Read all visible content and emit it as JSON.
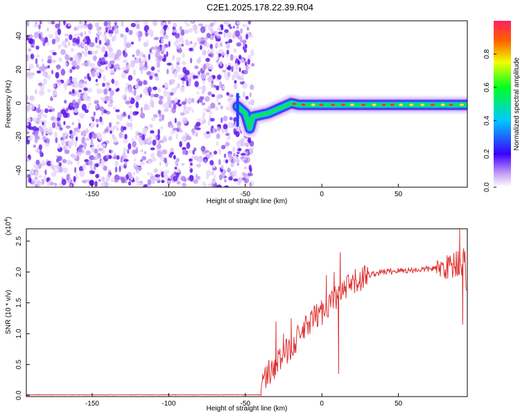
{
  "title": "C2E1.2025.178.22.39.R04",
  "chart_data": [
    {
      "type": "heatmap",
      "xlabel": "Height of straight line (km)",
      "ylabel": "Frequency (Hz)",
      "xlim": [
        -193,
        95
      ],
      "ylim": [
        -50,
        49
      ],
      "x_ticks": [
        -150,
        -100,
        -50,
        0,
        50
      ],
      "y_ticks": [
        -40,
        -20,
        0,
        20,
        40
      ],
      "noise_region_x": [
        -193,
        -45
      ],
      "signal_track": {
        "x": [
          -55,
          -50,
          -47,
          -45,
          -40,
          -35,
          -30,
          -25,
          -20,
          -15,
          -10,
          0,
          10,
          20,
          30,
          40,
          50,
          60,
          70,
          80,
          90,
          95
        ],
        "y": [
          -2,
          -6,
          -15,
          -8,
          -7,
          -6,
          -4,
          -2,
          0,
          -1,
          -1,
          -1,
          -1,
          -1,
          -1,
          -1,
          -1,
          -1,
          -1,
          -1,
          -1,
          -1
        ]
      },
      "colorbar": {
        "label": "Normalized spectral amplitude",
        "range": [
          0,
          1
        ],
        "ticks": [
          0.0,
          0.2,
          0.4,
          0.6,
          0.8
        ]
      }
    },
    {
      "type": "line",
      "xlabel": "Height of straight line (km)",
      "ylabel": "SNR (10 * v/v)",
      "y_multiplier_label": "(x10",
      "y_multiplier_exp": "4",
      "xlim": [
        -193,
        95
      ],
      "ylim": [
        -0.02,
        2.7
      ],
      "x_ticks": [
        -150,
        -100,
        -50,
        0,
        50
      ],
      "y_ticks": [
        "0.0",
        "0.5",
        "1.0",
        "1.5",
        "2.0",
        "2.5"
      ],
      "line_color": "#e03030",
      "series_anchor": {
        "x": [
          -193,
          -40,
          -38,
          -35,
          -30,
          -25,
          -20,
          -15,
          -10,
          -5,
          0,
          5,
          10,
          15,
          20,
          25,
          30,
          40,
          50,
          60,
          70,
          80,
          85,
          90,
          95
        ],
        "y": [
          0.01,
          0.01,
          0.25,
          0.35,
          0.5,
          0.65,
          0.8,
          0.95,
          1.1,
          1.25,
          1.35,
          1.5,
          1.6,
          1.7,
          1.8,
          1.88,
          1.95,
          2.0,
          2.02,
          2.03,
          2.05,
          2.07,
          2.1,
          2.2,
          2.0
        ]
      },
      "spikes": [
        {
          "x": -30,
          "y": 1.2
        },
        {
          "x": -25,
          "y": 1.0
        },
        {
          "x": -20,
          "y": 1.25
        },
        {
          "x": 3,
          "y": 1.95
        },
        {
          "x": 8,
          "y": 2.0
        },
        {
          "x": 12,
          "y": 2.32
        },
        {
          "x": 11,
          "y": 0.35
        },
        {
          "x": 90,
          "y": 2.7
        },
        {
          "x": 92,
          "y": 1.15
        }
      ]
    }
  ]
}
